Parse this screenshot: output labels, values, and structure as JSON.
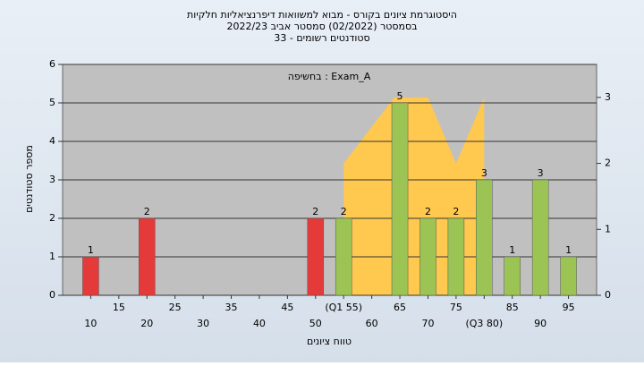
{
  "chart_data": {
    "type": "bar",
    "title": [
      "היסטוגרמת ציונים בקורס - מבוא למשוואות דיפרנציאליות חלקיות",
      "בסמסטר  (02/2022)  סמסטר אביב 2022/23",
      "סטודנטים רשומים - 33"
    ],
    "annotation": "בחשיפה : Exam_A",
    "x_label": "טווח ציונים",
    "y_label": "מספר סטודנטים",
    "x": [
      10,
      20,
      50,
      55,
      65,
      70,
      75,
      80,
      85,
      90,
      95
    ],
    "values": [
      1,
      2,
      2,
      2,
      5,
      2,
      2,
      3,
      1,
      3,
      1
    ],
    "colors": [
      "#e53a3a",
      "#e53a3a",
      "#e53a3a",
      "#9cc454",
      "#9cc454",
      "#9cc454",
      "#9cc454",
      "#9cc454",
      "#9cc454",
      "#9cc454",
      "#9cc454"
    ],
    "area": {
      "axis": "y2",
      "color": "#ffc84f",
      "x": [
        55,
        64,
        70,
        75,
        80
      ],
      "values": [
        2,
        3,
        3,
        2,
        3
      ]
    },
    "xlim": [
      5,
      100
    ],
    "xticks": [
      10,
      15,
      20,
      25,
      30,
      35,
      40,
      45,
      50,
      {
        "value": 55,
        "label": "(Q1 55)"
      },
      60,
      65,
      70,
      75,
      {
        "value": 80,
        "label": "(Q3 80)"
      },
      85,
      90,
      95
    ],
    "ylim": [
      0,
      6
    ],
    "yticks": [
      0,
      1,
      2,
      3,
      4,
      5,
      6
    ],
    "y2lim": [
      0,
      3.5
    ],
    "y2ticks": [
      0,
      1,
      2,
      3
    ],
    "grid": true
  }
}
